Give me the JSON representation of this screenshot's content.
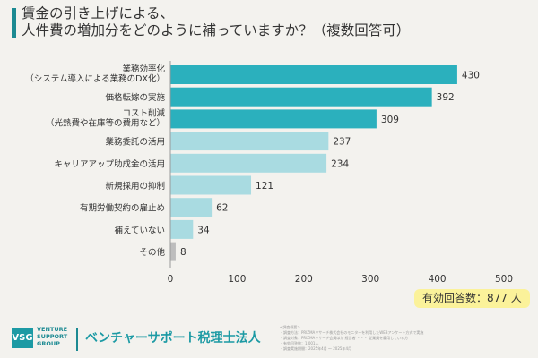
{
  "title": [
    "賃金の引き上げによる、",
    "人件費の増加分をどのように補っていますか？（複数回答可）"
  ],
  "answers_label": "有効回答数：877 人",
  "brand": {
    "logo": "VSG",
    "logo_text": [
      "VENTURE",
      "SUPPORT",
      "GROUP"
    ],
    "firm_name": "ベンチャーサポート税理士法人"
  },
  "notes": [
    "<調査概要>",
    "・調査方法：PRIZMAリサーチ株式会社のモニターを利用したWEBアンケート方式で実施",
    "・調査対象：PRIZMAリサーチ会員ほか 経営者 ・・・ 従業員を雇用している方",
    "・有効回答数：1,001人",
    "・調査実施期間：2025年4月 ～ 2025年4月"
  ],
  "colors": {
    "primary": "#2bb0bd",
    "secondary": "#a9dbe1",
    "other": "#bdbdbd",
    "accent": "#1c8a92"
  },
  "chart_data": {
    "type": "bar",
    "orientation": "horizontal",
    "categories": [
      [
        "業務効率化",
        "（システム導入による業務のDX化）"
      ],
      [
        "価格転嫁の実施"
      ],
      [
        "コスト削減",
        "（光熱費や在庫等の費用など）"
      ],
      [
        "業務委託の活用"
      ],
      [
        "キャリアアップ助成金の活用"
      ],
      [
        "新規採用の抑制"
      ],
      [
        "有期労働契約の雇止め"
      ],
      [
        "補えていない"
      ],
      [
        "その他"
      ]
    ],
    "values": [
      430,
      392,
      309,
      237,
      234,
      121,
      62,
      34,
      8
    ],
    "value_labels": [
      "430",
      "392",
      "309",
      "237",
      "234",
      "121",
      "62",
      "34",
      "8"
    ],
    "bar_colors": [
      "primary",
      "primary",
      "primary",
      "secondary",
      "secondary",
      "secondary",
      "secondary",
      "secondary",
      "other"
    ],
    "xlim": [
      0,
      500
    ],
    "xticks": [
      "0",
      "100",
      "200",
      "300",
      "400",
      "500"
    ],
    "grid": false
  }
}
